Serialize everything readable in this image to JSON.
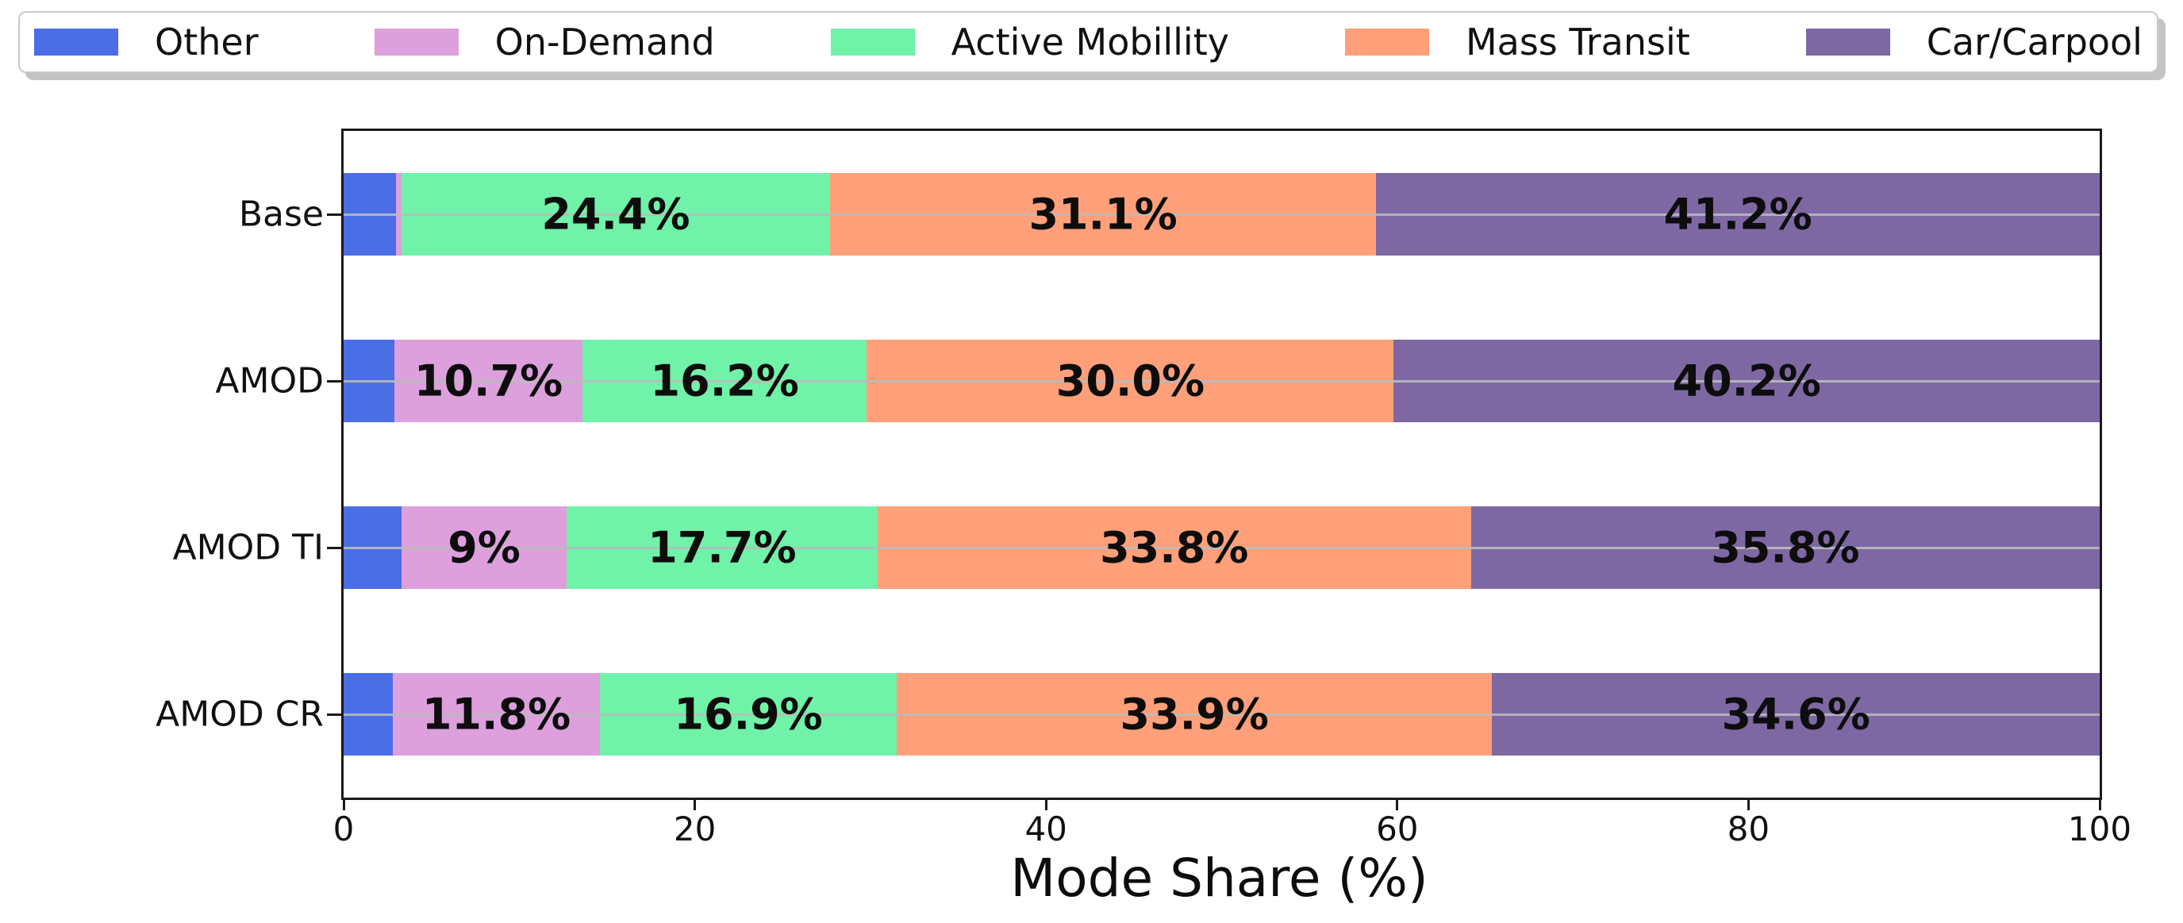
{
  "chart_data": {
    "type": "bar",
    "orientation": "horizontal",
    "stacked": true,
    "xlabel": "Mode Share (%)",
    "xlim": [
      0,
      100
    ],
    "xticks": [
      0,
      20,
      40,
      60,
      80,
      100
    ],
    "grid": "horizontal gridline through each bar row",
    "legend_position": "top, horizontal, 5 columns",
    "categories": [
      "Base",
      "AMOD",
      "AMOD TI",
      "AMOD CR"
    ],
    "series": [
      {
        "name": "Other",
        "color": "#4B6DE5",
        "values": [
          3.0,
          2.9,
          3.3,
          2.8
        ],
        "bar_labels": [
          "",
          "",
          "",
          ""
        ]
      },
      {
        "name": "On-Demand",
        "color": "#DDA0DD",
        "values": [
          0.3,
          10.7,
          9.4,
          11.8
        ],
        "bar_labels": [
          "",
          "10.7%",
          "9%",
          "11.8%"
        ]
      },
      {
        "name": "Active Mobillity",
        "color": "#70F2A9",
        "values": [
          24.4,
          16.2,
          17.7,
          16.9
        ],
        "bar_labels": [
          "24.4%",
          "16.2%",
          "17.7%",
          "16.9%"
        ]
      },
      {
        "name": "Mass Transit",
        "color": "#FFA07A",
        "values": [
          31.1,
          30.0,
          33.8,
          33.9
        ],
        "bar_labels": [
          "31.1%",
          "30.0%",
          "33.8%",
          "33.9%"
        ]
      },
      {
        "name": "Car/Carpool",
        "color": "#7E68A4",
        "values": [
          41.2,
          40.2,
          35.8,
          34.6
        ],
        "bar_labels": [
          "41.2%",
          "40.2%",
          "35.8%",
          "34.6%"
        ]
      }
    ]
  },
  "colors": {
    "axis_spine": "#1a1a1a",
    "gridline": "#bababa",
    "legend_border": "#c9c9c9",
    "text": "#111111",
    "background": "#ffffff"
  }
}
